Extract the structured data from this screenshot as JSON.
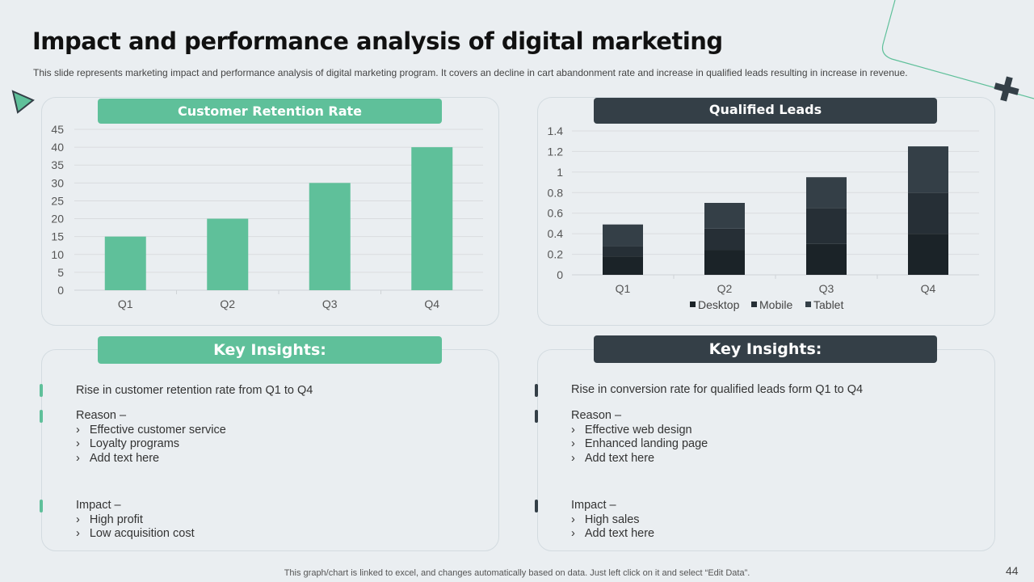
{
  "slide": {
    "title": "Impact and performance analysis of digital marketing",
    "subtitle": "This slide represents marketing impact and performance  analysis of digital marketing program.  It covers  an decline  in cart abandonment  rate and increase in qualified  leads resulting in increase in revenue.",
    "footer": "This graph/chart is linked to excel,  and changes automatically based on data. Just left click on it and select “Edit Data”.",
    "page_number": "44"
  },
  "colors": {
    "green": "#5fc09a",
    "dark": "#343f47",
    "desktop": "#1b2328",
    "mobile": "#262f36",
    "tablet": "#343f47"
  },
  "left_panel": {
    "banner": "Customer Retention Rate",
    "insights_banner": "Key Insights:",
    "insights": {
      "line1": "Rise in customer retention rate from Q1 to Q4",
      "reason_heading": "Reason –",
      "reasons": [
        "Effective customer service",
        "Loyalty programs",
        "Add text here"
      ],
      "impact_heading": "Impact –",
      "impacts": [
        "High profit",
        "Low acquisition cost"
      ]
    }
  },
  "right_panel": {
    "banner": "Qualified Leads",
    "insights_banner": "Key Insights:",
    "insights": {
      "line1": "Rise in conversion rate for qualified leads form Q1 to Q4",
      "reason_heading": "Reason –",
      "reasons": [
        "Effective web design",
        "Enhanced landing page",
        "Add text here"
      ],
      "impact_heading": "Impact –",
      "impacts": [
        "High sales",
        "Add text here"
      ]
    }
  },
  "bullet_glyph": "›",
  "chart_data": [
    {
      "type": "bar",
      "title": "Customer Retention Rate",
      "categories": [
        "Q1",
        "Q2",
        "Q3",
        "Q4"
      ],
      "values": [
        15,
        20,
        30,
        40
      ],
      "ylim": [
        0,
        45
      ],
      "yticks": [
        0,
        5,
        10,
        15,
        20,
        25,
        30,
        35,
        40,
        45
      ],
      "xlabel": "",
      "ylabel": "",
      "grid": true
    },
    {
      "type": "bar",
      "stacked": true,
      "title": "Qualified Leads",
      "categories": [
        "Q1",
        "Q2",
        "Q3",
        "Q4"
      ],
      "series": [
        {
          "name": "Desktop",
          "values": [
            0.18,
            0.24,
            0.3,
            0.4
          ]
        },
        {
          "name": "Mobile",
          "values": [
            0.1,
            0.21,
            0.35,
            0.4
          ]
        },
        {
          "name": "Tablet",
          "values": [
            0.21,
            0.25,
            0.3,
            0.45
          ]
        }
      ],
      "ylim": [
        0,
        1.4
      ],
      "yticks": [
        "0",
        "0.2",
        "0.4",
        "0.6",
        "0.8",
        "1",
        "1.2",
        "1.4"
      ],
      "legend": "bottom",
      "xlabel": "",
      "ylabel": "",
      "grid": true
    }
  ]
}
